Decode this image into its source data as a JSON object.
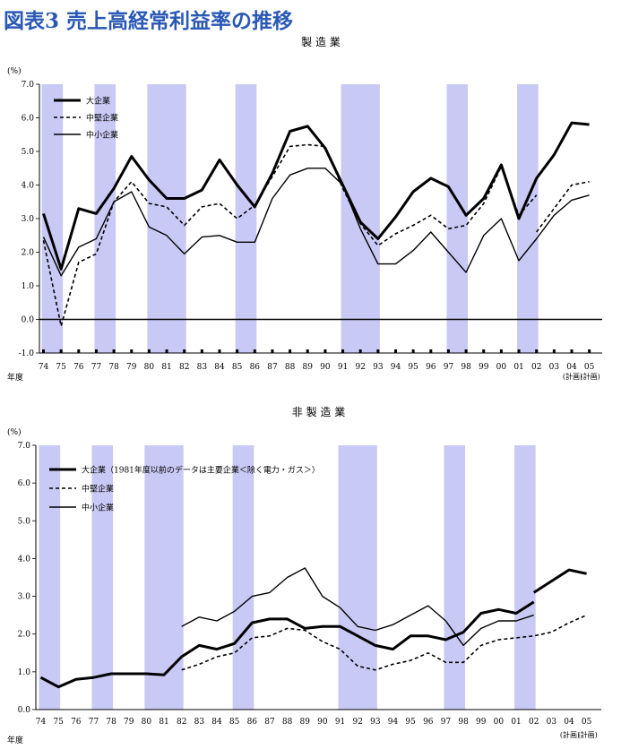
{
  "page": {
    "title": "図表3 売上高経常利益率の推移"
  },
  "colors": {
    "title": "#2a58b6",
    "recession_band": "#c9c9f5",
    "lines": "#000000"
  },
  "chart_data": [
    {
      "type": "line",
      "title": "製 造 業",
      "unit_label": "(%)",
      "xlabel": "年度",
      "categories": [
        "74",
        "75",
        "76",
        "77",
        "78",
        "79",
        "80",
        "81",
        "82",
        "83",
        "84",
        "85",
        "86",
        "87",
        "88",
        "89",
        "90",
        "91",
        "92",
        "93",
        "94",
        "95",
        "96",
        "97",
        "98",
        "99",
        "00",
        "01",
        "02",
        "03",
        "04",
        "05"
      ],
      "category_notes": {
        "04": "(計画)",
        "05": "(計画)"
      },
      "ylim": [
        -1.0,
        7.0
      ],
      "yticks": [
        "-1.0",
        "0.0",
        "1.0",
        "2.0",
        "3.0",
        "4.0",
        "5.0",
        "6.0",
        "7.0"
      ],
      "recession_bands": [
        [
          "74",
          "75"
        ],
        [
          "77",
          "78"
        ],
        [
          "80",
          "82"
        ],
        [
          "85",
          "86"
        ],
        [
          "91",
          "93"
        ],
        [
          "97",
          "98"
        ],
        [
          "01",
          "02"
        ]
      ],
      "legend_placement": "top-left",
      "series": [
        {
          "name": "大企業",
          "style": "thick",
          "values": [
            3.15,
            1.5,
            3.3,
            3.15,
            3.9,
            4.85,
            4.15,
            3.6,
            3.6,
            3.85,
            4.75,
            4.0,
            3.35,
            4.35,
            5.6,
            5.75,
            5.1,
            4.0,
            2.9,
            2.4,
            3.05,
            3.8,
            4.2,
            3.95,
            3.1,
            3.6,
            4.6,
            3.0,
            4.2,
            4.9,
            5.85,
            5.8
          ]
        },
        {
          "name": "中堅企業",
          "style": "dashed",
          "segments": [
            {
              "start": "74",
              "values": [
                2.35,
                -0.2,
                1.7,
                1.95,
                3.5,
                4.1,
                3.45,
                3.35,
                2.8,
                3.35,
                3.45,
                3.0,
                3.4,
                4.25,
                5.15,
                5.2,
                5.15,
                3.9,
                2.85,
                2.2,
                2.55,
                2.8,
                3.1,
                2.7,
                2.8,
                3.45,
                4.55,
                3.1,
                3.7
              ]
            },
            {
              "start": "02",
              "values": [
                2.6,
                3.3,
                4.0,
                4.1
              ]
            }
          ]
        },
        {
          "name": "中小企業",
          "style": "thin",
          "values": [
            2.45,
            1.3,
            2.15,
            2.4,
            3.5,
            3.8,
            2.75,
            2.5,
            1.95,
            2.45,
            2.5,
            2.3,
            2.3,
            3.6,
            4.3,
            4.5,
            4.5,
            4.0,
            2.7,
            1.65,
            1.65,
            2.05,
            2.6,
            2.0,
            1.4,
            2.5,
            3.0,
            1.75,
            2.4,
            3.1,
            3.55,
            3.7
          ]
        }
      ]
    },
    {
      "type": "line",
      "title": "非 製 造 業",
      "unit_label": "(%)",
      "xlabel": "年度",
      "categories": [
        "74",
        "75",
        "76",
        "77",
        "78",
        "79",
        "80",
        "81",
        "82",
        "83",
        "84",
        "85",
        "86",
        "87",
        "88",
        "89",
        "90",
        "91",
        "92",
        "93",
        "94",
        "95",
        "96",
        "97",
        "98",
        "99",
        "00",
        "01",
        "02",
        "03",
        "04",
        "05"
      ],
      "category_notes": {
        "04": "(計画)",
        "05": "(計画)"
      },
      "ylim": [
        0.0,
        7.0
      ],
      "yticks": [
        "0.0",
        "1.0",
        "2.0",
        "3.0",
        "4.0",
        "5.0",
        "6.0",
        "7.0"
      ],
      "recession_bands": [
        [
          "74",
          "75"
        ],
        [
          "77",
          "78"
        ],
        [
          "80",
          "82"
        ],
        [
          "85",
          "86"
        ],
        [
          "91",
          "93"
        ],
        [
          "97",
          "98"
        ],
        [
          "01",
          "02"
        ]
      ],
      "legend_placement": "top-left",
      "series": [
        {
          "name": "大企業（1981年度以前のデータは主要企業＜除く電力・ガス＞）",
          "style": "thick",
          "segments": [
            {
              "start": "74",
              "values": [
                0.85,
                0.6,
                0.8,
                0.85,
                0.95,
                0.95,
                0.95,
                0.92,
                1.4,
                1.7,
                1.6,
                1.75,
                2.3,
                2.4,
                2.4,
                2.15,
                2.2,
                2.2,
                1.95,
                1.7,
                1.6,
                1.95,
                1.95,
                1.85,
                2.05,
                2.55,
                2.65,
                2.55,
                2.85
              ]
            },
            {
              "start": "02",
              "values": [
                3.1,
                3.4,
                3.7,
                3.6
              ]
            }
          ]
        },
        {
          "name": "中堅企業",
          "style": "dashed",
          "segments": [
            {
              "start": "82",
              "values": [
                1.05,
                1.2,
                1.4,
                1.5,
                1.9,
                1.95,
                2.15,
                2.1,
                1.8,
                1.6,
                1.15,
                1.05,
                1.2,
                1.3,
                1.5,
                1.25,
                1.25,
                1.7,
                1.85,
                1.9,
                1.95,
                2.05,
                2.3,
                2.5
              ]
            }
          ]
        },
        {
          "name": "中小企業",
          "style": "thin",
          "segments": [
            {
              "start": "82",
              "values": [
                2.2,
                2.45,
                2.35,
                2.6,
                3.0,
                3.1,
                3.5,
                3.75,
                3.0,
                2.7,
                2.2,
                2.1,
                2.25,
                2.5,
                2.75,
                2.35,
                1.7,
                2.15,
                2.35,
                2.35,
                2.5
              ]
            }
          ]
        }
      ]
    }
  ]
}
